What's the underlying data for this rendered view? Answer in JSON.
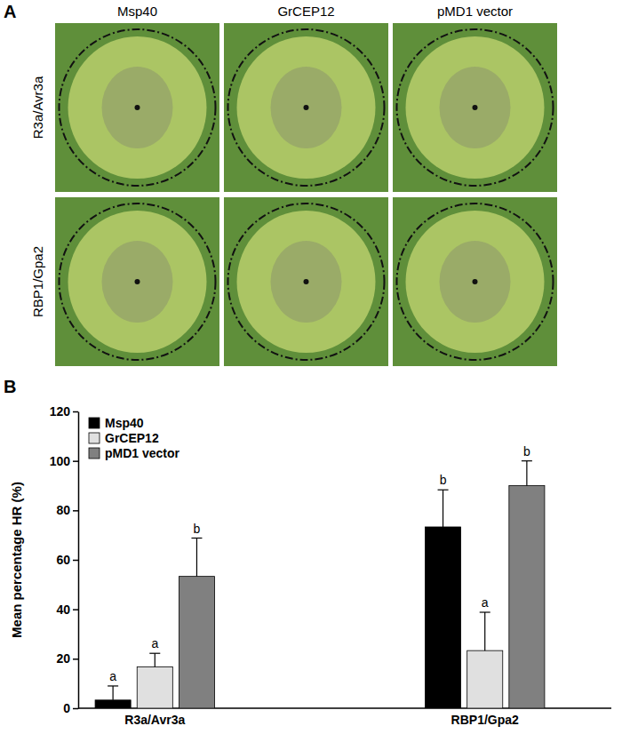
{
  "panel_a": {
    "label": "A",
    "columns": [
      "Msp40",
      "GrCEP12",
      "pMD1 vector"
    ],
    "rows": [
      "R3a/Avr3a",
      "RBP1/Gpa2"
    ]
  },
  "panel_b": {
    "label": "B"
  },
  "chart_data": {
    "type": "bar",
    "y_label": "Mean percentage HR (%)",
    "categories": [
      "R3a/Avr3a",
      "RBP1/Gpa2"
    ],
    "series": [
      {
        "name": "Msp40",
        "color": "#000000",
        "values": [
          3.3,
          73.3
        ],
        "errors": [
          5.7,
          15
        ],
        "letters": [
          "a",
          "b"
        ]
      },
      {
        "name": "GrCEP12",
        "color": "#e0e0e0",
        "values": [
          16.7,
          23.3
        ],
        "errors": [
          5.5,
          15.5
        ],
        "letters": [
          "a",
          "a"
        ]
      },
      {
        "name": "pMD1 vector",
        "color": "#808080",
        "values": [
          53.3,
          90
        ],
        "errors": [
          15.5,
          10
        ],
        "letters": [
          "b",
          "b"
        ]
      }
    ],
    "ylim": [
      0,
      120
    ],
    "yticks": [
      0,
      20,
      40,
      60,
      80,
      100,
      120
    ],
    "grid": false,
    "legend": "top-left"
  }
}
